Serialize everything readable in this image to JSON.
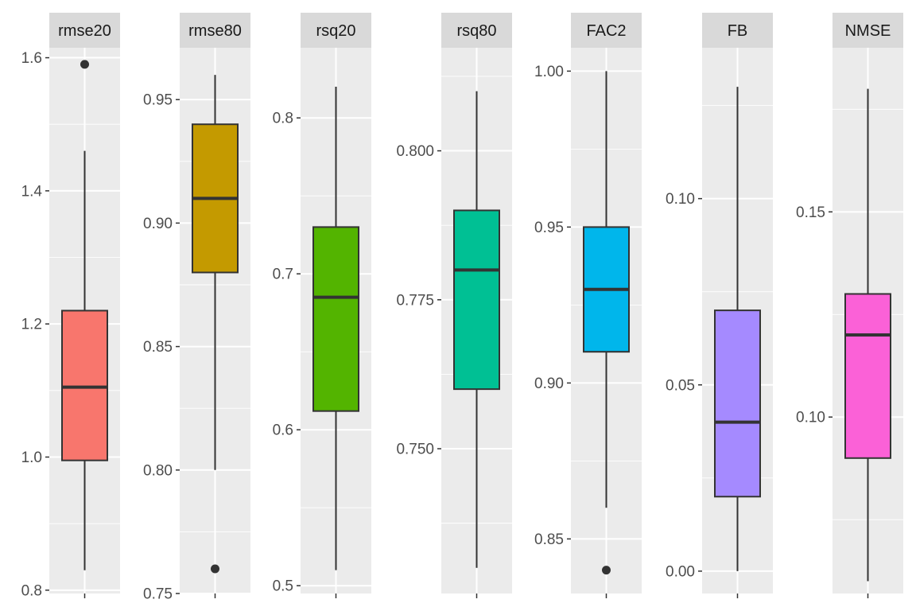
{
  "chart_data": {
    "type": "boxplot",
    "layout": "facets",
    "colors": {
      "panel_bg": "#ebebeb",
      "strip_bg": "#d9d9d9",
      "grid": "#ffffff",
      "axis_text": "#4d4d4d",
      "line": "#333333"
    },
    "facets": [
      {
        "name": "rmse20",
        "color": "#F8766D",
        "ylim": [
          0.795,
          1.615
        ],
        "ticks": [
          0.8,
          1.0,
          1.2,
          1.4,
          1.6
        ],
        "tick_labels": [
          "0.8",
          "1.0",
          "1.2",
          "1.4",
          "1.6"
        ],
        "box": {
          "lower_whisker": 0.83,
          "q1": 0.995,
          "median": 1.105,
          "q3": 1.22,
          "upper_whisker": 1.46
        },
        "outliers": [
          1.59
        ]
      },
      {
        "name": "rmse80",
        "color": "#C49A00",
        "ylim": [
          0.75,
          0.971
        ],
        "ticks": [
          0.75,
          0.8,
          0.85,
          0.9,
          0.95
        ],
        "tick_labels": [
          "0.75",
          "0.80",
          "0.85",
          "0.90",
          "0.95"
        ],
        "box": {
          "lower_whisker": 0.8,
          "q1": 0.88,
          "median": 0.91,
          "q3": 0.94,
          "upper_whisker": 0.96
        },
        "outliers": [
          0.76
        ]
      },
      {
        "name": "rsq20",
        "color": "#53B400",
        "ylim": [
          0.495,
          0.845
        ],
        "ticks": [
          0.5,
          0.6,
          0.7,
          0.8
        ],
        "tick_labels": [
          "0.5",
          "0.6",
          "0.7",
          "0.8"
        ],
        "box": {
          "lower_whisker": 0.51,
          "q1": 0.612,
          "median": 0.685,
          "q3": 0.73,
          "upper_whisker": 0.82
        },
        "outliers": []
      },
      {
        "name": "rsq80",
        "color": "#00C094",
        "ylim": [
          0.7257,
          0.8173
        ],
        "ticks": [
          0.75,
          0.775,
          0.8
        ],
        "tick_labels": [
          "0.750",
          "0.775",
          "0.800"
        ],
        "box": {
          "lower_whisker": 0.73,
          "q1": 0.76,
          "median": 0.78,
          "q3": 0.79,
          "upper_whisker": 0.81
        },
        "outliers": []
      },
      {
        "name": "FAC2",
        "color": "#00B6EB",
        "ylim": [
          0.8325,
          1.0075
        ],
        "ticks": [
          0.85,
          0.9,
          0.95,
          1.0
        ],
        "tick_labels": [
          "0.85",
          "0.90",
          "0.95",
          "1.00"
        ],
        "box": {
          "lower_whisker": 0.86,
          "q1": 0.91,
          "median": 0.93,
          "q3": 0.95,
          "upper_whisker": 1.0
        },
        "outliers": [
          0.84
        ]
      },
      {
        "name": "FB",
        "color": "#A58AFF",
        "ylim": [
          -0.006,
          0.1405
        ],
        "ticks": [
          0.0,
          0.05,
          0.1
        ],
        "tick_labels": [
          "0.00",
          "0.05",
          "0.10"
        ],
        "box": {
          "lower_whisker": 0.0,
          "q1": 0.02,
          "median": 0.04,
          "q3": 0.07,
          "upper_whisker": 0.13
        },
        "outliers": []
      },
      {
        "name": "NMSE",
        "color": "#FB61D7",
        "ylim": [
          0.057,
          0.19
        ],
        "ticks": [
          0.1,
          0.15
        ],
        "tick_labels": [
          "0.10",
          "0.15"
        ],
        "box": {
          "lower_whisker": 0.06,
          "q1": 0.09,
          "median": 0.12,
          "q3": 0.13,
          "upper_whisker": 0.18
        },
        "outliers": []
      }
    ]
  }
}
